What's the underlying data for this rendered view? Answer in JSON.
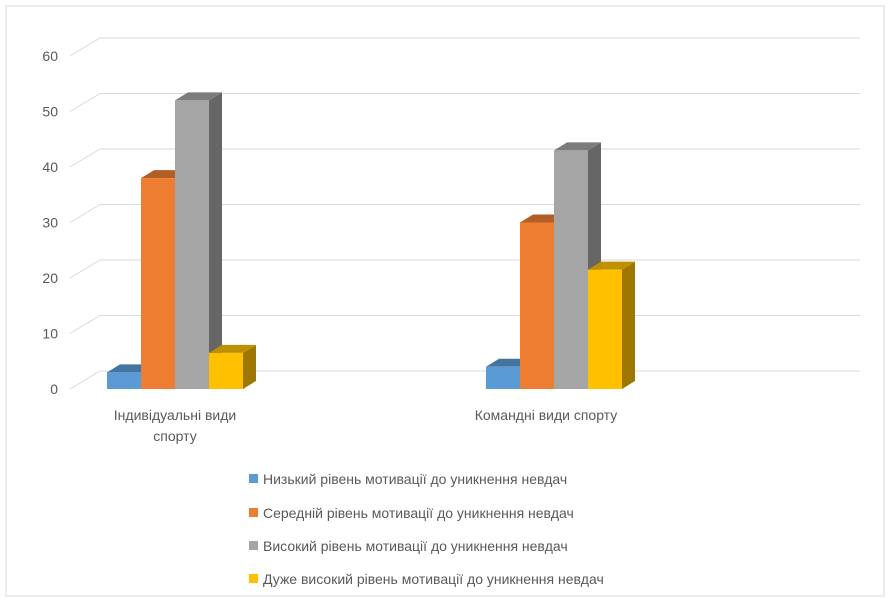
{
  "chart_data": {
    "type": "bar",
    "categories": [
      "Індивідуальні види спорту",
      "Командні види спорту"
    ],
    "series": [
      {
        "name": "Низький рівень мотивації до уникнення невдач",
        "values": [
          3,
          4
        ],
        "color": "#5B9BD5"
      },
      {
        "name": "Середній рівень мотивації до уникнення невдач",
        "values": [
          38,
          30
        ],
        "color": "#ED7D31"
      },
      {
        "name": "Високий рівень мотивації до уникнення невдач",
        "values": [
          52,
          43
        ],
        "color": "#A5A5A5"
      },
      {
        "name": "Дуже високий рівень мотивації до уникнення невдач",
        "values": [
          6.5,
          21.5
        ],
        "color": "#FFC000"
      }
    ],
    "yticks": [
      "0",
      "10",
      "20",
      "30",
      "40",
      "50",
      "60"
    ],
    "ylim": [
      0,
      60
    ],
    "grid": true,
    "legend_position": "bottom",
    "three_d": true
  }
}
